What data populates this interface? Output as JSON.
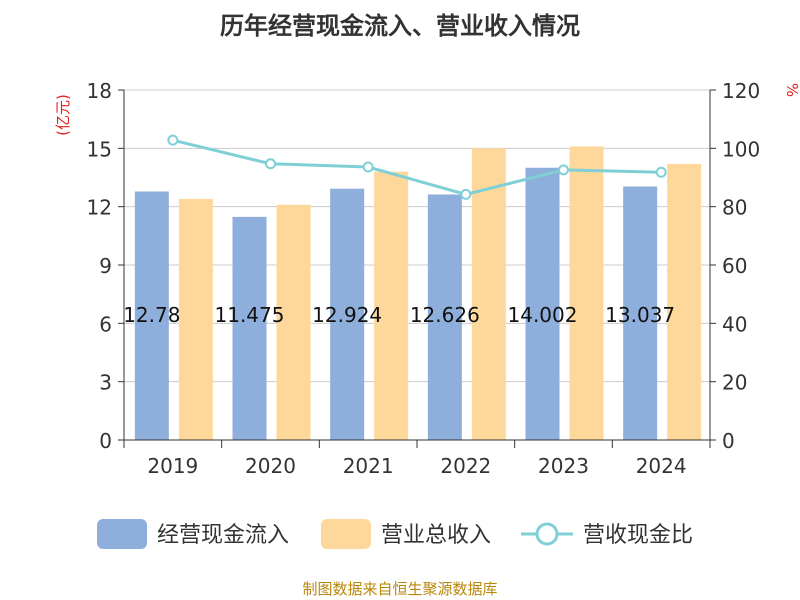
{
  "chart_data": {
    "type": "bar",
    "title": "历年经营现金流入、营业收入情况",
    "categories": [
      "2019",
      "2020",
      "2021",
      "2022",
      "2023",
      "2024"
    ],
    "series": [
      {
        "name": "经营现金流入",
        "kind": "bar",
        "axis": "left",
        "values": [
          12.78,
          11.475,
          12.924,
          12.626,
          14.002,
          13.037
        ],
        "labels": [
          "12.78",
          "11.475",
          "12.924",
          "12.626",
          "14.002",
          "13.037"
        ],
        "color": "#8eaedb"
      },
      {
        "name": "营业总收入",
        "kind": "bar",
        "axis": "left",
        "values": [
          12.4,
          12.1,
          13.8,
          15.0,
          15.1,
          14.2
        ],
        "color": "#fdd89a"
      },
      {
        "name": "营收现金比",
        "kind": "line",
        "axis": "right",
        "values": [
          102.8,
          94.7,
          93.6,
          84.2,
          92.6,
          91.8
        ],
        "color": "#7fd0d6"
      }
    ],
    "ylabel_left": "(亿元)",
    "ylabel_right": "%",
    "ylim_left": [
      0,
      18
    ],
    "ylim_right": [
      0,
      120
    ],
    "yticks_left": [
      "0",
      "3",
      "6",
      "9",
      "12",
      "15",
      "18"
    ],
    "yticks_right": [
      "0",
      "20",
      "40",
      "60",
      "80",
      "100",
      "120"
    ],
    "grid": true,
    "legend_position": "bottom"
  },
  "source": "制图数据来自恒生聚源数据库"
}
